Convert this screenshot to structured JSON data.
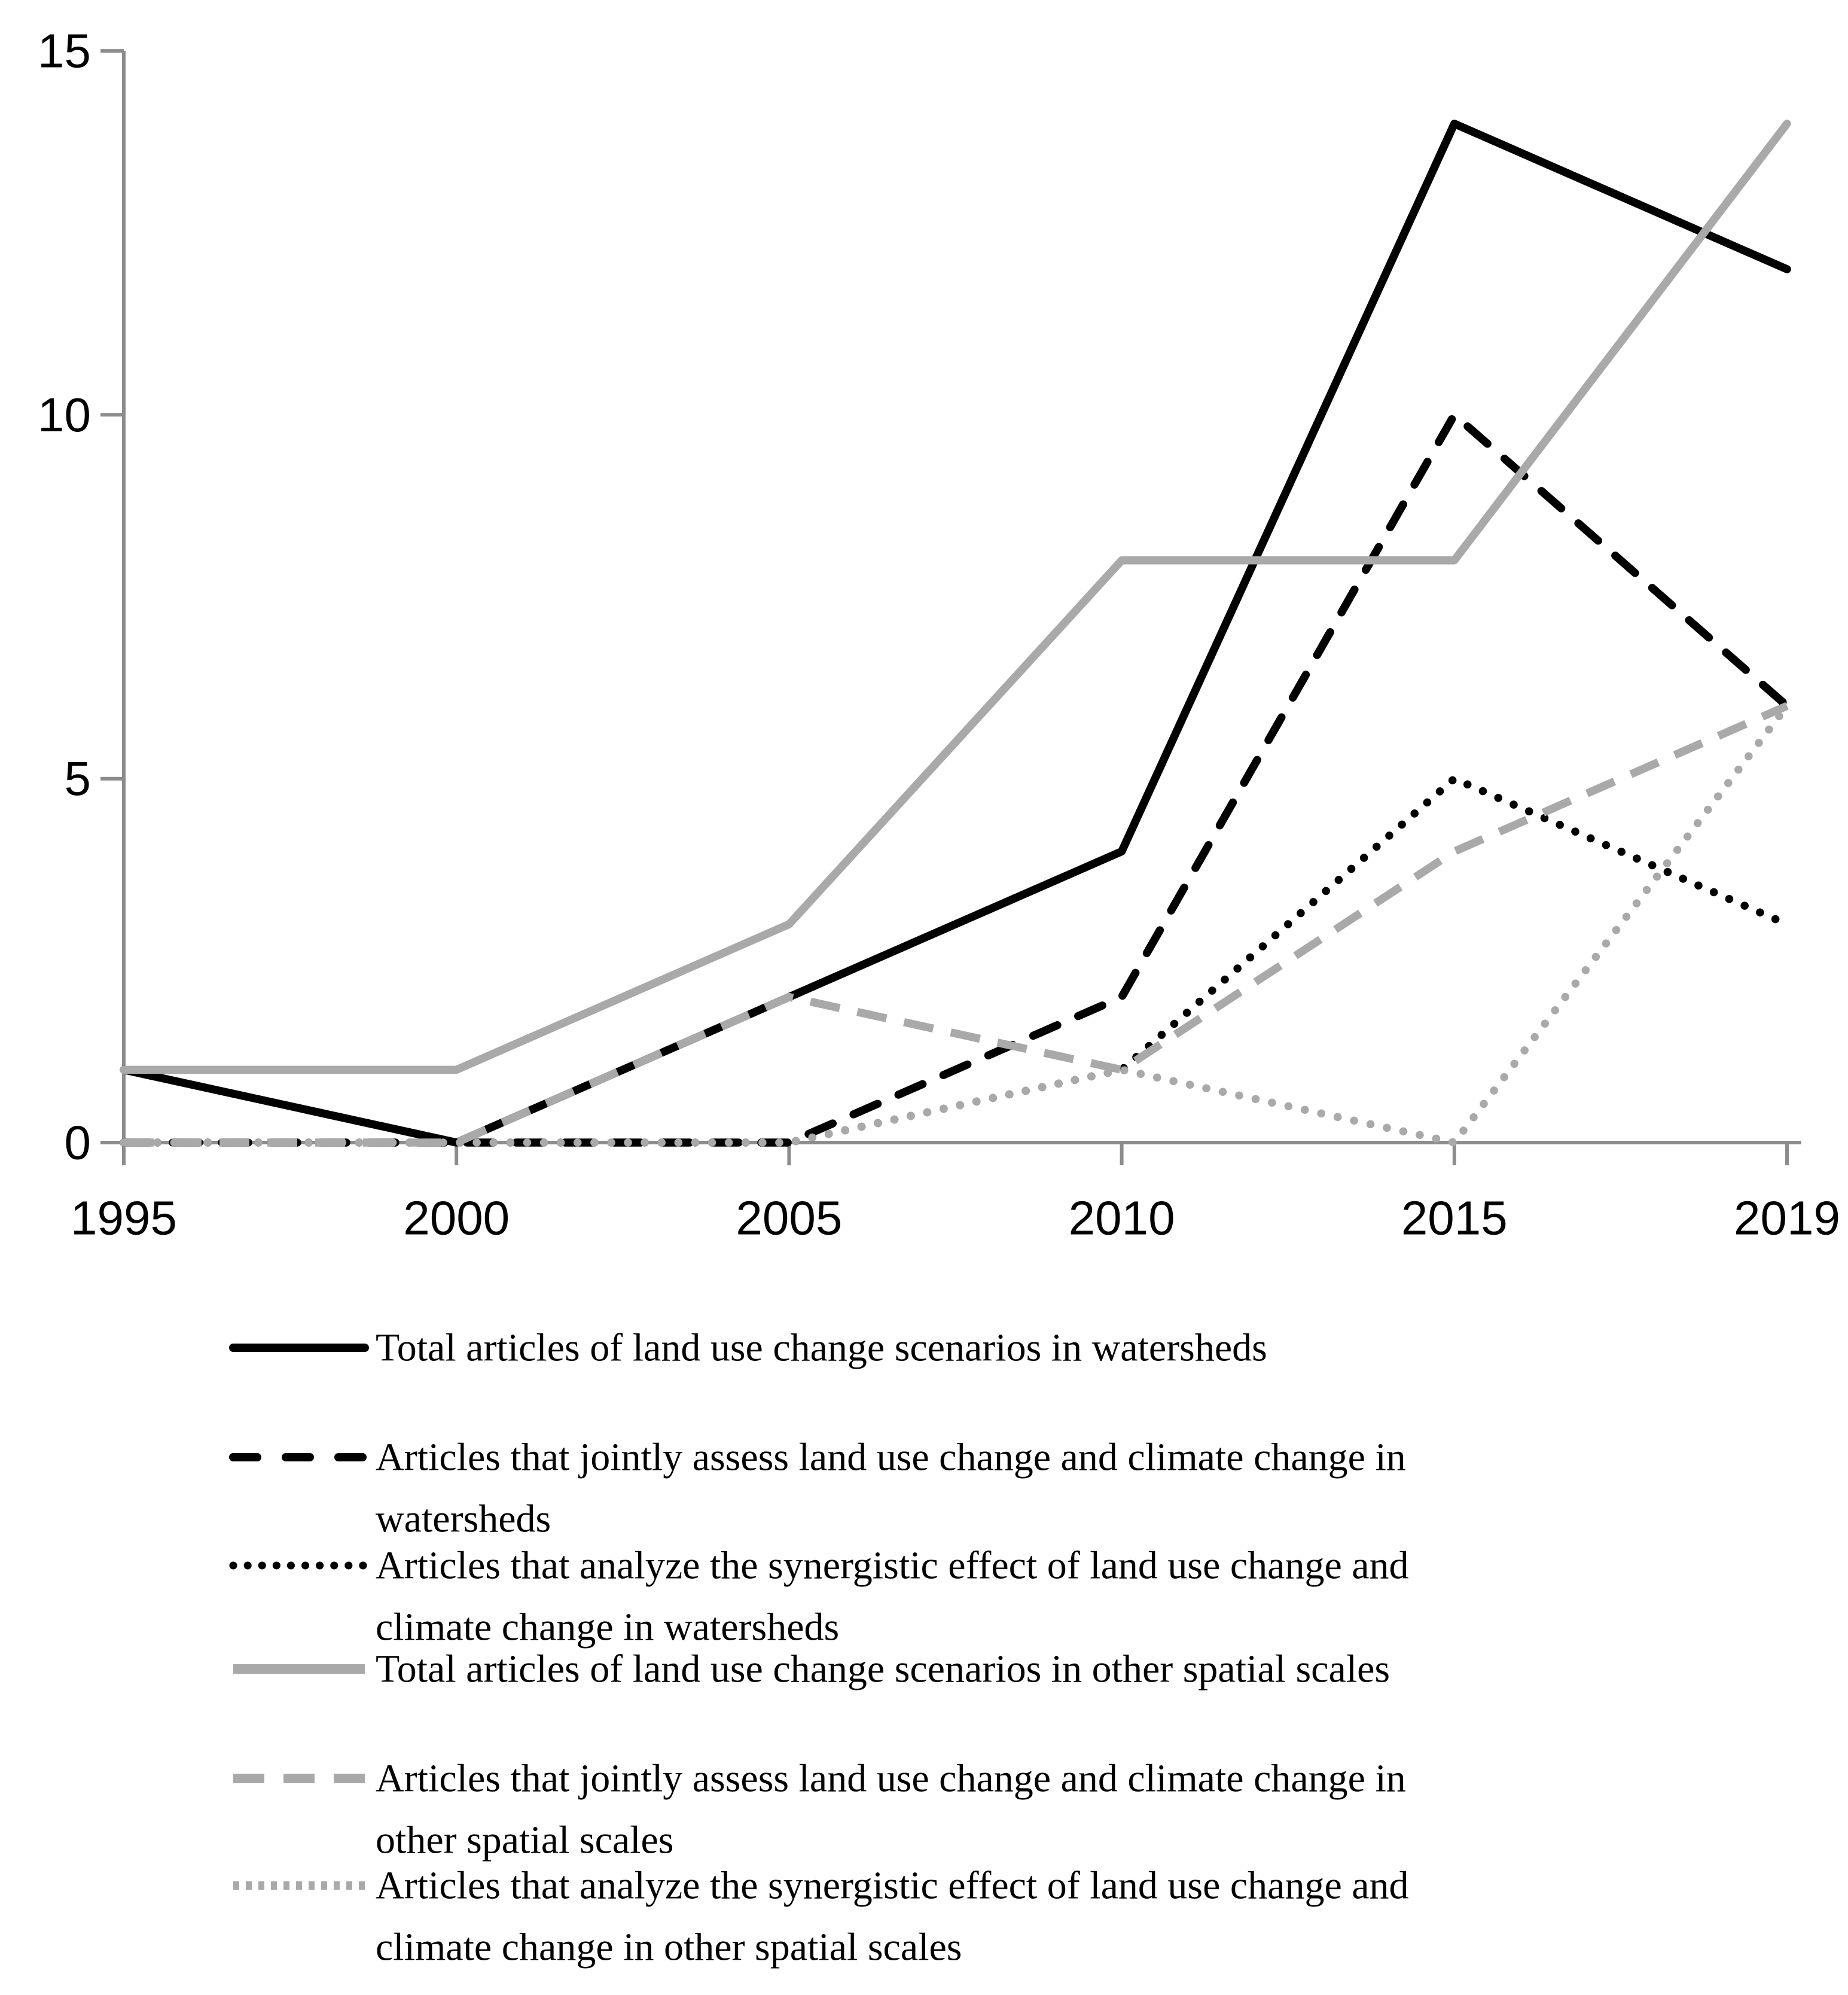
{
  "chart_data": {
    "type": "line",
    "title": "",
    "xlabel": "",
    "ylabel": "",
    "categories": [
      "1995",
      "2000",
      "2005",
      "2010",
      "2015",
      "2019"
    ],
    "ylim": [
      0,
      15
    ],
    "y_ticks": [
      0,
      5,
      10,
      15
    ],
    "grid": false,
    "legend_position": "bottom",
    "series": [
      {
        "name": "Total articles of land use change scenarios in watersheds",
        "style": "solid",
        "color": "#000000",
        "values": [
          1,
          0,
          2,
          4,
          14,
          12
        ],
        "legend_lines": [
          "Total articles of land use change scenarios in watersheds"
        ]
      },
      {
        "name": "Articles that jointly assess land use change and climate change in watersheds",
        "style": "dashed",
        "color": "#000000",
        "values": [
          0,
          0,
          0,
          2,
          10,
          6
        ],
        "legend_lines": [
          "Articles that jointly assess land use change and climate change in",
          "watersheds"
        ]
      },
      {
        "name": "Articles that analyze the synergistic effect of land use change and climate change in watersheds",
        "style": "dotted",
        "color": "#000000",
        "values": [
          0,
          0,
          0,
          1,
          5,
          3
        ],
        "legend_lines": [
          "Articles that analyze the synergistic effect of land use change and",
          "climate change in watersheds"
        ]
      },
      {
        "name": "Total articles of land use change scenarios in other spatial scales",
        "style": "solid",
        "color": "#a9a9a9",
        "values": [
          1,
          1,
          3,
          8,
          8,
          14
        ],
        "legend_lines": [
          "Total articles of land use change scenarios in other spatial scales"
        ]
      },
      {
        "name": "Articles that jointly assess land use change and climate change in other spatial scales",
        "style": "dashed",
        "color": "#a9a9a9",
        "values": [
          0,
          0,
          2,
          1,
          4,
          6
        ],
        "legend_lines": [
          "Articles that jointly assess land use change and climate change in",
          "other spatial scales"
        ]
      },
      {
        "name": "Articles that analyze the synergistic effect of land use change and climate change in other spatial scales",
        "style": "dotted",
        "color": "#a9a9a9",
        "values": [
          0,
          0,
          0,
          1,
          0,
          6
        ],
        "legend_lines": [
          "Articles that analyze the synergistic effect of land use change and",
          "climate change in other spatial scales"
        ]
      }
    ]
  },
  "axis": {
    "y_labels": [
      "0",
      "5",
      "10",
      "15"
    ],
    "axis_color": "#8c8c8c",
    "label_color": "#000000"
  }
}
